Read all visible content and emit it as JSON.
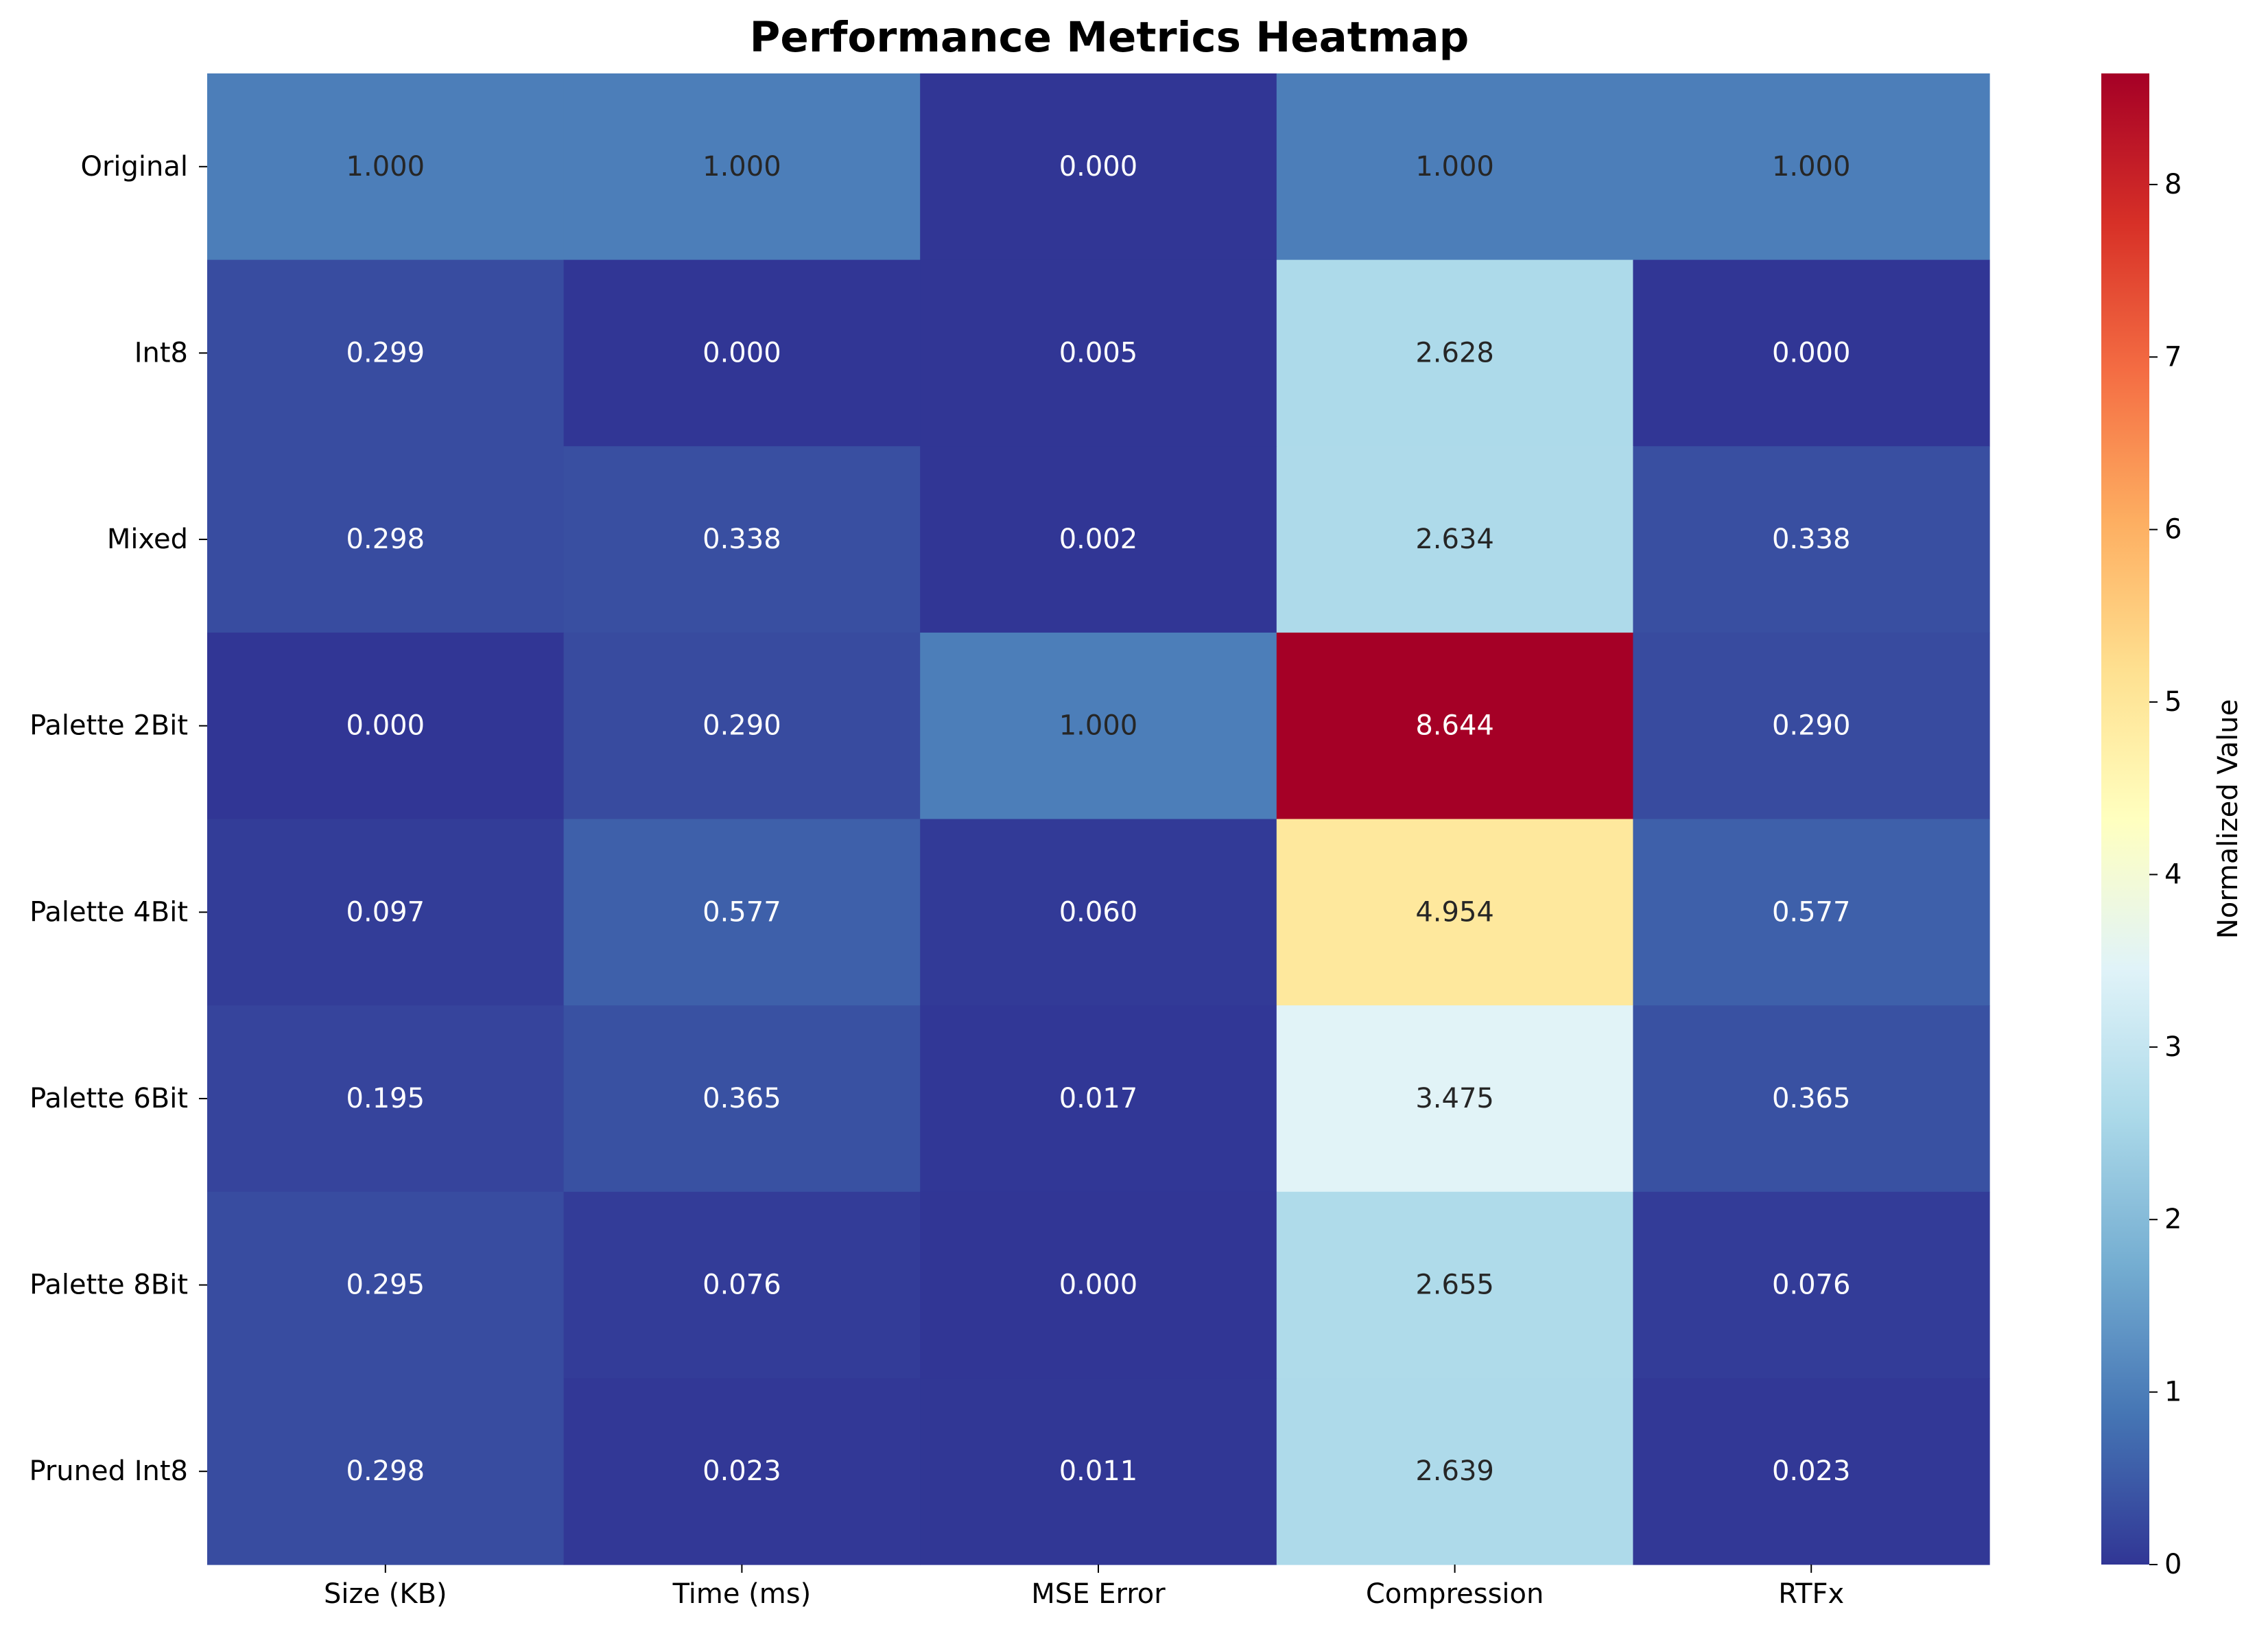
{
  "chart_data": {
    "type": "heatmap",
    "title": "Performance Metrics Heatmap",
    "rows": [
      "Original",
      "Int8",
      "Mixed",
      "Palette 2Bit",
      "Palette 4Bit",
      "Palette 6Bit",
      "Palette 8Bit",
      "Pruned Int8"
    ],
    "columns": [
      "Size (KB)",
      "Time (ms)",
      "MSE Error",
      "Compression",
      "RTFx"
    ],
    "values": [
      [
        1.0,
        1.0,
        0.0,
        1.0,
        1.0
      ],
      [
        0.299,
        0.0,
        0.005,
        2.628,
        0.0
      ],
      [
        0.298,
        0.338,
        0.002,
        2.634,
        0.338
      ],
      [
        0.0,
        0.29,
        1.0,
        8.644,
        0.29
      ],
      [
        0.097,
        0.577,
        0.06,
        4.954,
        0.577
      ],
      [
        0.195,
        0.365,
        0.017,
        3.475,
        0.365
      ],
      [
        0.295,
        0.076,
        0.0,
        2.655,
        0.076
      ],
      [
        0.298,
        0.023,
        0.011,
        2.639,
        0.023
      ]
    ],
    "value_labels": [
      [
        "1.000",
        "1.000",
        "0.000",
        "1.000",
        "1.000"
      ],
      [
        "0.299",
        "0.000",
        "0.005",
        "2.628",
        "0.000"
      ],
      [
        "0.298",
        "0.338",
        "0.002",
        "2.634",
        "0.338"
      ],
      [
        "0.000",
        "0.290",
        "1.000",
        "8.644",
        "0.290"
      ],
      [
        "0.097",
        "0.577",
        "0.060",
        "4.954",
        "0.577"
      ],
      [
        "0.195",
        "0.365",
        "0.017",
        "3.475",
        "0.365"
      ],
      [
        "0.295",
        "0.076",
        "0.000",
        "2.655",
        "0.076"
      ],
      [
        "0.298",
        "0.023",
        "0.011",
        "2.639",
        "0.023"
      ]
    ],
    "colormap": "RdYlBu_r",
    "value_range": [
      0,
      8.644
    ],
    "colorbar": {
      "label": "Normalized Value",
      "ticks": [
        "0",
        "1",
        "2",
        "3",
        "4",
        "5",
        "6",
        "7",
        "8"
      ],
      "placement": "right"
    },
    "grid": false
  }
}
